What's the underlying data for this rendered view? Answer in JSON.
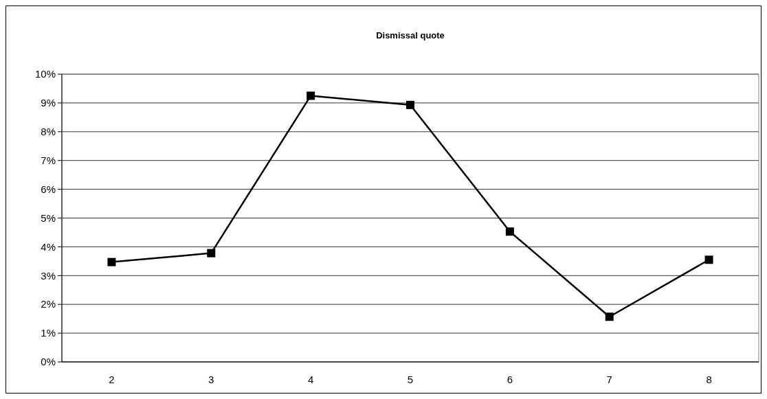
{
  "chart_data": {
    "type": "line",
    "title": "Dismissal quote",
    "categories": [
      "2",
      "3",
      "4",
      "5",
      "6",
      "7",
      "8"
    ],
    "series": [
      {
        "color": "#000000",
        "values": [
          0.0347,
          0.0378,
          0.0925,
          0.0893,
          0.0453,
          0.0157,
          0.0355
        ]
      }
    ],
    "ylim": [
      0,
      0.1
    ],
    "yticks": [
      {
        "value": 0,
        "label": "0%"
      },
      {
        "value": 0.01,
        "label": "1%"
      },
      {
        "value": 0.02,
        "label": "2%"
      },
      {
        "value": 0.03,
        "label": "3%"
      },
      {
        "value": 0.04,
        "label": "4%"
      },
      {
        "value": 0.05,
        "label": "5%"
      },
      {
        "value": 0.06,
        "label": "6%"
      },
      {
        "value": 0.07,
        "label": "7%"
      },
      {
        "value": 0.08,
        "label": "8%"
      },
      {
        "value": 0.09,
        "label": "9%"
      },
      {
        "value": 0.1,
        "label": "10%"
      }
    ],
    "grid": "y",
    "marker": "square",
    "line_style": "solid"
  }
}
